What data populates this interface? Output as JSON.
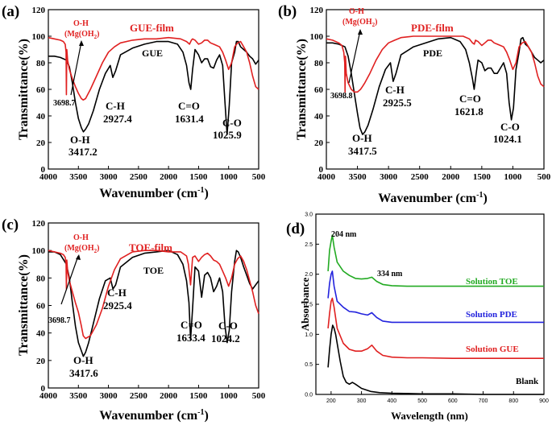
{
  "colors": {
    "film": "#e02020",
    "sample": "#000000",
    "toe": "#22aa22",
    "pde": "#2222dd",
    "gue": "#e02020",
    "blank": "#000000"
  },
  "chart_data": [
    {
      "type": "line",
      "panel": "(a)",
      "xlabel": "Wavenumber (cm",
      "xlabel_sup": "-1",
      "xlabel_close": ")",
      "ylabel": "Transmittance(%)",
      "xlim": [
        4000,
        500
      ],
      "ylim": [
        0,
        120
      ],
      "xticks": [
        "4000",
        "3500",
        "3000",
        "2500",
        "2000",
        "1500",
        "1000",
        "500"
      ],
      "yticks": [
        "0",
        "20",
        "40",
        "60",
        "80",
        "100",
        "120"
      ],
      "series": [
        {
          "name": "GUE",
          "color": "#000000",
          "x": [
            4000,
            3900,
            3800,
            3700,
            3650,
            3600,
            3550,
            3500,
            3450,
            3417,
            3380,
            3330,
            3250,
            3150,
            3050,
            2970,
            2927,
            2880,
            2800,
            2600,
            2400,
            2200,
            2000,
            1850,
            1760,
            1700,
            1660,
            1631,
            1600,
            1560,
            1500,
            1450,
            1400,
            1350,
            1300,
            1250,
            1200,
            1150,
            1100,
            1060,
            1026,
            990,
            950,
            900,
            870,
            840,
            800,
            750,
            700,
            650,
            600,
            550,
            500
          ],
          "y": [
            85,
            85,
            84,
            82,
            77,
            65,
            50,
            38,
            31,
            28,
            30,
            34,
            44,
            60,
            72,
            78,
            69,
            74,
            86,
            91,
            94,
            96,
            96,
            94,
            88,
            78,
            65,
            60,
            75,
            90,
            86,
            80,
            83,
            83,
            77,
            76,
            82,
            86,
            78,
            50,
            26,
            48,
            80,
            88,
            96,
            96,
            92,
            90,
            88,
            85,
            83,
            79,
            82
          ]
        },
        {
          "name": "GUE-film",
          "color": "#e02020",
          "x": [
            4000,
            3900,
            3800,
            3750,
            3720,
            3705,
            3699,
            3693,
            3680,
            3650,
            3600,
            3550,
            3500,
            3450,
            3420,
            3380,
            3300,
            3200,
            3100,
            3000,
            2900,
            2800,
            2600,
            2400,
            2200,
            2000,
            1800,
            1700,
            1650,
            1620,
            1600,
            1560,
            1500,
            1450,
            1400,
            1350,
            1300,
            1250,
            1200,
            1150,
            1100,
            1050,
            1000,
            950,
            900,
            850,
            800,
            750,
            700,
            650,
            600,
            550,
            500
          ],
          "y": [
            99,
            98,
            97,
            96,
            94,
            88,
            56,
            90,
            82,
            75,
            68,
            62,
            57,
            53,
            52,
            53,
            60,
            70,
            80,
            88,
            92,
            95,
            97,
            98,
            98,
            99,
            98,
            96,
            94,
            97,
            98,
            97,
            94,
            95,
            97,
            97,
            95,
            94,
            93,
            92,
            88,
            82,
            75,
            80,
            92,
            95,
            96,
            92,
            88,
            80,
            70,
            62,
            60
          ]
        }
      ],
      "annotations": [
        "O-H",
        "(Mg(OH",
        "2",
        ")",
        "GUE-film",
        "GUE",
        "3698.7",
        "C-H",
        "2927.4",
        "C=O",
        "1631.4",
        "O-H",
        "3417.2",
        "C-O",
        "1025.9"
      ]
    },
    {
      "type": "line",
      "panel": "(b)",
      "xlabel": "Wavenumber (cm",
      "xlabel_sup": "-1",
      "xlabel_close": ")",
      "ylabel": "Transmittance(%)",
      "xlim": [
        4000,
        500
      ],
      "ylim": [
        0,
        120
      ],
      "xticks": [
        "4000",
        "3500",
        "3000",
        "2500",
        "2000",
        "1500",
        "1000",
        "500"
      ],
      "yticks": [
        "0",
        "20",
        "40",
        "60",
        "80",
        "100",
        "120"
      ],
      "series": [
        {
          "name": "PDE",
          "color": "#000000",
          "x": [
            4000,
            3900,
            3800,
            3700,
            3650,
            3600,
            3550,
            3500,
            3460,
            3418,
            3380,
            3330,
            3250,
            3150,
            3050,
            2970,
            2926,
            2880,
            2800,
            2600,
            2400,
            2200,
            2000,
            1850,
            1760,
            1700,
            1650,
            1622,
            1590,
            1560,
            1500,
            1450,
            1400,
            1350,
            1300,
            1250,
            1200,
            1150,
            1100,
            1060,
            1024,
            990,
            950,
            900,
            870,
            840,
            800,
            750,
            700,
            650,
            600,
            550,
            500
          ],
          "y": [
            95,
            95,
            94,
            92,
            85,
            72,
            57,
            42,
            31,
            26,
            28,
            33,
            45,
            62,
            75,
            80,
            66,
            72,
            86,
            92,
            95,
            98,
            99,
            96,
            90,
            80,
            68,
            60,
            72,
            82,
            80,
            74,
            76,
            76,
            72,
            72,
            76,
            80,
            72,
            50,
            37,
            46,
            75,
            88,
            98,
            99,
            94,
            92,
            88,
            84,
            82,
            80,
            82
          ]
        },
        {
          "name": "PDE-film",
          "color": "#e02020",
          "x": [
            4000,
            3900,
            3800,
            3750,
            3720,
            3705,
            3699,
            3693,
            3680,
            3650,
            3600,
            3550,
            3500,
            3450,
            3420,
            3380,
            3300,
            3200,
            3100,
            3000,
            2900,
            2800,
            2600,
            2400,
            2200,
            2000,
            1800,
            1700,
            1650,
            1620,
            1600,
            1560,
            1500,
            1450,
            1400,
            1350,
            1300,
            1250,
            1200,
            1150,
            1100,
            1050,
            1000,
            950,
            900,
            850,
            800,
            750,
            700,
            650,
            600,
            550,
            500
          ],
          "y": [
            98,
            97,
            95,
            93,
            88,
            80,
            58,
            85,
            72,
            65,
            60,
            58,
            58,
            60,
            62,
            65,
            72,
            82,
            90,
            95,
            97,
            99,
            100,
            100,
            100,
            100,
            100,
            98,
            95,
            94,
            97,
            96,
            93,
            95,
            97,
            97,
            95,
            94,
            93,
            92,
            88,
            82,
            75,
            80,
            92,
            95,
            96,
            92,
            88,
            80,
            70,
            64,
            62
          ]
        }
      ],
      "annotations": [
        "O-H",
        "(Mg(OH",
        "2",
        ")",
        "PDE-film",
        "PDE",
        "3698.8",
        "C-H",
        "2925.5",
        "C=O",
        "1621.8",
        "O-H",
        "3417.5",
        "C-O",
        "1024.1"
      ]
    },
    {
      "type": "line",
      "panel": "(c)",
      "xlabel": "Wavenumber (cm",
      "xlabel_sup": "-1",
      "xlabel_close": ")",
      "ylabel": "Transmittance(%)",
      "xlim": [
        4000,
        500
      ],
      "ylim": [
        0,
        120
      ],
      "xticks": [
        "4000",
        "3500",
        "3000",
        "2500",
        "2000",
        "1500",
        "1000",
        "500"
      ],
      "yticks": [
        "0",
        "20",
        "40",
        "60",
        "80",
        "100",
        "120"
      ],
      "series": [
        {
          "name": "TOE",
          "color": "#000000",
          "x": [
            4000,
            3900,
            3800,
            3700,
            3650,
            3600,
            3550,
            3500,
            3450,
            3418,
            3380,
            3330,
            3250,
            3150,
            3050,
            2970,
            2925,
            2880,
            2800,
            2600,
            2400,
            2200,
            2000,
            1850,
            1760,
            1700,
            1660,
            1633,
            1600,
            1560,
            1500,
            1450,
            1400,
            1350,
            1300,
            1250,
            1200,
            1150,
            1100,
            1060,
            1024,
            990,
            950,
            900,
            870,
            840,
            800,
            750,
            700,
            650,
            600,
            550,
            500
          ],
          "y": [
            99,
            99,
            97,
            90,
            80,
            62,
            45,
            33,
            27,
            23,
            26,
            33,
            47,
            65,
            78,
            80,
            72,
            75,
            88,
            95,
            98,
            99,
            100,
            97,
            90,
            78,
            62,
            35,
            58,
            88,
            85,
            66,
            82,
            84,
            80,
            70,
            74,
            80,
            70,
            45,
            33,
            42,
            70,
            92,
            100,
            99,
            95,
            88,
            82,
            76,
            72,
            75,
            78
          ]
        },
        {
          "name": "TOE-film",
          "color": "#e02020",
          "x": [
            4000,
            3900,
            3800,
            3750,
            3720,
            3705,
            3699,
            3693,
            3680,
            3650,
            3600,
            3550,
            3500,
            3450,
            3420,
            3380,
            3300,
            3200,
            3100,
            3000,
            2900,
            2800,
            2600,
            2400,
            2200,
            2000,
            1800,
            1700,
            1670,
            1633,
            1600,
            1560,
            1500,
            1450,
            1400,
            1350,
            1300,
            1250,
            1200,
            1150,
            1100,
            1050,
            1000,
            950,
            900,
            850,
            800,
            750,
            700,
            650,
            600,
            550,
            500
          ],
          "y": [
            100,
            99,
            98,
            97,
            95,
            90,
            72,
            93,
            85,
            78,
            70,
            62,
            55,
            45,
            38,
            36,
            38,
            46,
            58,
            74,
            86,
            94,
            99,
            100,
            100,
            99,
            99,
            96,
            90,
            75,
            95,
            96,
            92,
            95,
            97,
            98,
            96,
            93,
            92,
            90,
            85,
            80,
            74,
            80,
            90,
            94,
            96,
            92,
            86,
            78,
            70,
            60,
            54
          ]
        }
      ],
      "annotations": [
        "O-H",
        "(Mg(OH",
        "2",
        ")",
        "TOE-film",
        "TOE",
        "3698.7",
        "C-H",
        "2925.4",
        "C=O",
        "1633.4",
        "O-H",
        "3417.6",
        "C-O",
        "1024.2"
      ]
    },
    {
      "type": "line",
      "panel": "(d)",
      "xlabel": "Wavelength (nm)",
      "ylabel": "Absorbance",
      "xlim": [
        150,
        900
      ],
      "ylim": [
        0,
        3.0
      ],
      "xticks": [
        "200",
        "300",
        "400",
        "500",
        "600",
        "700",
        "800",
        "900"
      ],
      "yticks": [
        "0.0",
        "0.5",
        "1.0",
        "1.5",
        "2.0",
        "2.5",
        "3.0"
      ],
      "series": [
        {
          "name": "Solution TOE",
          "color": "#22aa22",
          "x": [
            190,
            195,
            200,
            204,
            210,
            220,
            240,
            260,
            280,
            300,
            320,
            334,
            350,
            370,
            400,
            450,
            500,
            600,
            700,
            800,
            900
          ],
          "y": [
            2.05,
            2.4,
            2.55,
            2.65,
            2.45,
            2.2,
            2.05,
            1.98,
            1.93,
            1.92,
            1.93,
            1.95,
            1.88,
            1.83,
            1.81,
            1.8,
            1.8,
            1.8,
            1.8,
            1.8,
            1.8
          ]
        },
        {
          "name": "Solution PDE",
          "color": "#2222dd",
          "x": [
            190,
            195,
            200,
            204,
            210,
            220,
            240,
            260,
            280,
            300,
            320,
            334,
            350,
            370,
            400,
            450,
            500,
            600,
            700,
            800,
            900
          ],
          "y": [
            1.6,
            1.85,
            2.0,
            2.05,
            1.8,
            1.55,
            1.45,
            1.38,
            1.37,
            1.34,
            1.32,
            1.36,
            1.28,
            1.22,
            1.2,
            1.2,
            1.2,
            1.2,
            1.2,
            1.2,
            1.2
          ]
        },
        {
          "name": "Solution GUE",
          "color": "#e02020",
          "x": [
            190,
            195,
            200,
            204,
            210,
            220,
            240,
            260,
            280,
            300,
            320,
            334,
            350,
            370,
            400,
            450,
            500,
            600,
            700,
            800,
            900
          ],
          "y": [
            1.1,
            1.35,
            1.55,
            1.6,
            1.45,
            1.1,
            0.85,
            0.75,
            0.72,
            0.72,
            0.76,
            0.82,
            0.72,
            0.65,
            0.62,
            0.61,
            0.61,
            0.6,
            0.6,
            0.6,
            0.6
          ]
        },
        {
          "name": "Blank",
          "color": "#000000",
          "x": [
            190,
            195,
            200,
            205,
            210,
            215,
            220,
            230,
            240,
            250,
            260,
            270,
            280,
            300,
            330,
            360,
            400,
            500,
            600,
            700,
            800,
            900
          ],
          "y": [
            0.45,
            0.75,
            1.0,
            1.15,
            1.1,
            1.0,
            0.85,
            0.55,
            0.3,
            0.2,
            0.17,
            0.2,
            0.17,
            0.1,
            0.05,
            0.03,
            0.02,
            0.01,
            0.01,
            0.0,
            0.0,
            0.0
          ]
        }
      ],
      "annotations": [
        "204 nm",
        "334 nm"
      ]
    }
  ]
}
